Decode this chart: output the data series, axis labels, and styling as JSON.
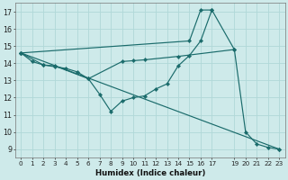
{
  "xlabel": "Humidex (Indice chaleur)",
  "ylabel": "",
  "xlim": [
    -0.5,
    23.5
  ],
  "ylim": [
    8.5,
    17.5
  ],
  "xtick_positions": [
    0,
    1,
    2,
    3,
    4,
    5,
    6,
    7,
    8,
    9,
    10,
    11,
    12,
    13,
    14,
    15,
    16,
    17,
    19,
    20,
    21,
    22,
    23
  ],
  "xtick_labels": [
    "0",
    "1",
    "2",
    "3",
    "4",
    "5",
    "6",
    "7",
    "8",
    "9",
    "10",
    "11",
    "12",
    "13",
    "14",
    "15",
    "16",
    "17",
    "19",
    "20",
    "21",
    "22",
    "23"
  ],
  "yticks": [
    9,
    10,
    11,
    12,
    13,
    14,
    15,
    16,
    17
  ],
  "bg_color": "#ceeaea",
  "line_color": "#1a6b6b",
  "grid_color": "#b0d8d8",
  "lines": [
    {
      "x": [
        0,
        1,
        2,
        3,
        4,
        5,
        6,
        7,
        8,
        9,
        10,
        11,
        12,
        13,
        14,
        15,
        16,
        17
      ],
      "y": [
        14.6,
        14.1,
        13.9,
        13.8,
        13.7,
        13.5,
        13.1,
        12.2,
        11.2,
        11.8,
        12.0,
        12.1,
        12.5,
        12.8,
        13.85,
        14.45,
        15.3,
        17.1
      ]
    },
    {
      "x": [
        0,
        2,
        3,
        6,
        9,
        10,
        11,
        14,
        19
      ],
      "y": [
        14.6,
        13.9,
        13.85,
        13.1,
        14.1,
        14.15,
        14.2,
        14.4,
        14.8
      ]
    },
    {
      "x": [
        0,
        23
      ],
      "y": [
        14.6,
        9.0
      ]
    },
    {
      "x": [
        0,
        15,
        16,
        17,
        19,
        20,
        21,
        22,
        23
      ],
      "y": [
        14.6,
        15.3,
        17.1,
        17.1,
        14.8,
        10.0,
        9.3,
        9.1,
        9.0
      ]
    }
  ]
}
